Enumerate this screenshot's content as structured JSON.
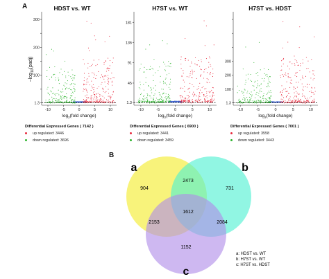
{
  "panel_a_letter": "A",
  "panel_b_letter": "B",
  "colors": {
    "up": "#e8283c",
    "down": "#2fb52f",
    "ns": "#3a5fcd",
    "venn_a": "#f4ee3c",
    "venn_b": "#4ef0d2",
    "venn_c": "#b08ce8"
  },
  "volcano_ylabel": "-log10(padj)",
  "chart_data": [
    {
      "type": "scatter",
      "title": "HDST vs. WT",
      "xlabel": "log2(fold change)",
      "x_ticks": [
        "-10",
        "-5",
        "0",
        "5",
        "10"
      ],
      "y_ticks": [
        "1.3",
        "100",
        "200",
        "300"
      ],
      "y_ticks_display": [
        "1.3",
        "",
        "100",
        "",
        "200",
        "",
        "300"
      ],
      "legend_title": "Differential Expressed Genes ( 7142 )",
      "series": [
        {
          "name": "up regulated: 3446",
          "count": 3446
        },
        {
          "name": "down regulated: 3696",
          "count": 3696
        }
      ],
      "threshold": 1.3
    },
    {
      "type": "scatter",
      "title": "H7ST vs. WT",
      "xlabel": "log2(fold change)",
      "x_ticks": [
        "-10",
        "-5",
        "0",
        "5",
        "10"
      ],
      "y_ticks": [
        "1.3",
        "45",
        "91",
        "136",
        "181"
      ],
      "legend_title": "Differential Expressed Genes ( 6900 )",
      "series": [
        {
          "name": "up regulated: 3441",
          "count": 3441
        },
        {
          "name": "down regulated: 3459",
          "count": 3459
        }
      ],
      "threshold": 1.3
    },
    {
      "type": "scatter",
      "title": "H7ST vs. HDST",
      "xlabel": "log2(fold change)",
      "x_ticks": [
        "-10",
        "-5",
        "0",
        "5",
        "10"
      ],
      "y_ticks": [
        "1.3",
        "100",
        "200",
        "300"
      ],
      "legend_title": "Differential Expressed Genes ( 7001 )",
      "series": [
        {
          "name": "up regulated: 3558",
          "count": 3558
        },
        {
          "name": "down regulated: 3443",
          "count": 3443
        }
      ],
      "threshold": 1.3
    },
    {
      "type": "venn",
      "set_labels": [
        "a",
        "b",
        "c"
      ],
      "regions": {
        "a_only": 904,
        "b_only": 731,
        "c_only": 1152,
        "ab": 2473,
        "ac": 2153,
        "bc": 2084,
        "abc": 1612
      },
      "legend": [
        "a: HDST vs. WT",
        "b: H7ST vs. WT",
        "c: H7ST vs. HDST"
      ]
    }
  ]
}
